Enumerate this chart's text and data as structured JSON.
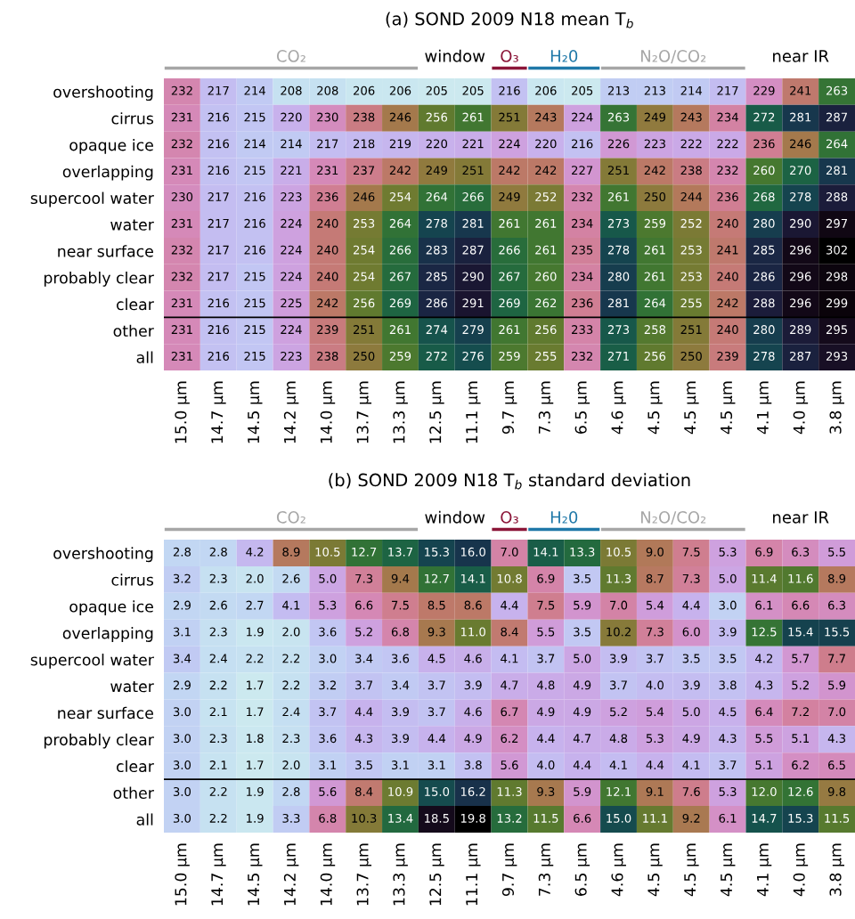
{
  "chart_data": [
    {
      "type": "heatmap",
      "title": "(a) SOND 2009 N18 mean T$_{b}$",
      "data_labels": true,
      "categories": [
        "15.0 µm",
        "14.7 µm",
        "14.5 µm",
        "14.2 µm",
        "14.0 µm",
        "13.7 µm",
        "13.3 µm",
        "12.5 µm",
        "11.1 µm",
        "9.7 µm",
        "7.3 µm",
        "6.5 µm",
        "4.6 µm",
        "4.5 µm",
        "4.5 µm",
        "4.5 µm",
        "4.1 µm",
        "4.0 µm",
        "3.8 µm"
      ],
      "y_categories": [
        "overshooting",
        "cirrus",
        "opaque ice",
        "overlapping",
        "supercool water",
        "water",
        "near surface",
        "probably clear",
        "clear",
        "other",
        "all"
      ],
      "cells": [
        [
          232,
          217,
          214,
          208,
          208,
          206,
          206,
          205,
          205,
          216,
          206,
          205,
          213,
          213,
          214,
          217,
          229,
          241,
          263
        ],
        [
          231,
          216,
          215,
          220,
          230,
          238,
          246,
          256,
          261,
          251,
          243,
          224,
          263,
          249,
          243,
          234,
          272,
          281,
          287
        ],
        [
          232,
          216,
          214,
          214,
          217,
          218,
          219,
          220,
          221,
          224,
          220,
          216,
          226,
          223,
          222,
          222,
          236,
          246,
          264
        ],
        [
          231,
          216,
          215,
          221,
          231,
          237,
          242,
          249,
          251,
          242,
          242,
          227,
          251,
          242,
          238,
          232,
          260,
          270,
          281
        ],
        [
          230,
          217,
          216,
          223,
          236,
          246,
          254,
          264,
          266,
          249,
          252,
          232,
          261,
          250,
          244,
          236,
          268,
          278,
          288
        ],
        [
          231,
          217,
          216,
          224,
          240,
          253,
          264,
          278,
          281,
          261,
          261,
          234,
          273,
          259,
          252,
          240,
          280,
          290,
          297
        ],
        [
          232,
          217,
          216,
          224,
          240,
          254,
          266,
          283,
          287,
          266,
          261,
          235,
          278,
          261,
          253,
          241,
          285,
          296,
          302
        ],
        [
          232,
          217,
          215,
          224,
          240,
          254,
          267,
          285,
          290,
          267,
          260,
          234,
          280,
          261,
          253,
          240,
          286,
          296,
          298
        ],
        [
          231,
          216,
          215,
          225,
          242,
          256,
          269,
          286,
          291,
          269,
          262,
          236,
          281,
          264,
          255,
          242,
          288,
          296,
          299
        ],
        [
          231,
          216,
          215,
          224,
          239,
          251,
          261,
          274,
          279,
          261,
          256,
          233,
          273,
          258,
          251,
          240,
          280,
          289,
          295
        ],
        [
          231,
          216,
          215,
          223,
          238,
          250,
          259,
          272,
          276,
          259,
          255,
          232,
          271,
          256,
          250,
          239,
          278,
          287,
          293
        ]
      ],
      "annotations": [
        "CO₂",
        "window",
        "O₃",
        "H₂0",
        "N₂O/CO₂",
        "near IR"
      ]
    },
    {
      "type": "heatmap",
      "title": "(b) SOND 2009 N18 T$_{b}$ standard deviation",
      "categories": [
        "15.0 µm",
        "14.7 µm",
        "14.5 µm",
        "14.2 µm",
        "14.0 µm",
        "13.7 µm",
        "13.3 µm",
        "12.5 µm",
        "11.1 µm",
        "9.7 µm",
        "7.3 µm",
        "6.5 µm",
        "4.6 µm",
        "4.5 µm",
        "4.5 µm",
        "4.5 µm",
        "4.1 µm",
        "4.0 µm",
        "3.8 µm"
      ],
      "y_categories": [
        "overshooting",
        "cirrus",
        "opaque ice",
        "overlapping",
        "supercool water",
        "water",
        "near surface",
        "probably clear",
        "clear",
        "other",
        "all"
      ],
      "cells": [
        [
          2.8,
          2.8,
          4.2,
          8.9,
          10.5,
          12.7,
          13.7,
          15.3,
          16.0,
          7.0,
          14.1,
          13.3,
          10.5,
          9.0,
          7.5,
          5.3,
          6.9,
          6.3,
          5.5
        ],
        [
          3.2,
          2.3,
          2.0,
          2.6,
          5.0,
          7.3,
          9.4,
          12.7,
          14.1,
          10.8,
          6.9,
          3.5,
          11.3,
          8.7,
          7.3,
          5.0,
          11.4,
          11.6,
          8.9
        ],
        [
          2.9,
          2.6,
          2.7,
          4.1,
          5.3,
          6.6,
          7.5,
          8.5,
          8.6,
          4.4,
          7.5,
          5.9,
          7.0,
          5.4,
          4.4,
          3.0,
          6.1,
          6.6,
          6.3
        ],
        [
          3.1,
          2.3,
          1.9,
          2.0,
          3.6,
          5.2,
          6.8,
          9.3,
          11.0,
          8.4,
          5.5,
          3.5,
          10.2,
          7.3,
          6.0,
          3.9,
          12.5,
          15.4,
          15.5
        ],
        [
          3.4,
          2.4,
          2.2,
          2.2,
          3.0,
          3.4,
          3.6,
          4.5,
          4.6,
          4.1,
          3.7,
          5.0,
          3.9,
          3.7,
          3.5,
          3.5,
          4.2,
          5.7,
          7.7
        ],
        [
          2.9,
          2.2,
          1.7,
          2.2,
          3.2,
          3.7,
          3.4,
          3.7,
          3.9,
          4.7,
          4.8,
          4.9,
          3.7,
          4.0,
          3.9,
          3.8,
          4.3,
          5.2,
          5.9
        ],
        [
          3.0,
          2.1,
          1.7,
          2.4,
          3.7,
          4.4,
          3.9,
          3.7,
          4.6,
          6.7,
          4.9,
          4.9,
          5.2,
          5.4,
          5.0,
          4.5,
          6.4,
          7.2,
          7.0
        ],
        [
          3.0,
          2.3,
          1.8,
          2.3,
          3.6,
          4.3,
          3.9,
          4.4,
          4.9,
          6.2,
          4.4,
          4.7,
          4.8,
          5.3,
          4.9,
          4.3,
          5.5,
          5.1,
          4.3
        ],
        [
          3.0,
          2.1,
          1.7,
          2.0,
          3.1,
          3.5,
          3.1,
          3.1,
          3.8,
          5.6,
          4.0,
          4.4,
          4.1,
          4.4,
          4.1,
          3.7,
          5.1,
          6.2,
          6.5
        ],
        [
          3.0,
          2.2,
          1.9,
          2.8,
          5.6,
          8.4,
          10.9,
          15.0,
          16.2,
          11.3,
          9.3,
          5.9,
          12.1,
          9.1,
          7.6,
          5.3,
          12.0,
          12.6,
          9.8
        ],
        [
          3.0,
          2.2,
          1.9,
          3.3,
          6.8,
          10.3,
          13.4,
          18.5,
          19.8,
          13.2,
          11.5,
          6.6,
          15.0,
          11.1,
          9.2,
          6.1,
          14.7,
          15.3,
          11.5
        ]
      ],
      "cell_labels": [
        [
          "2.8",
          "2.8",
          "4.2",
          "8.9",
          "10.5",
          "12.7",
          "13.7",
          "15.3",
          "16.0",
          "7.0",
          "14.1",
          "13.3",
          "10.5",
          "9.0",
          "7.5",
          "5.3",
          "6.9",
          "6.3",
          "5.5"
        ],
        [
          "3.2",
          "2.3",
          "2.0",
          "2.6",
          "5.0",
          "7.3",
          "9.4",
          "12.7",
          "14.1",
          "10.8",
          "6.9",
          "3.5",
          "11.3",
          "8.7",
          "7.3",
          "5.0",
          "11.4",
          "11.6",
          "8.9"
        ],
        [
          "2.9",
          "2.6",
          "2.7",
          "4.1",
          "5.3",
          "6.6",
          "7.5",
          "8.5",
          "8.6",
          "4.4",
          "7.5",
          "5.9",
          "7.0",
          "5.4",
          "4.4",
          "3.0",
          "6.1",
          "6.6",
          "6.3"
        ],
        [
          "3.1",
          "2.3",
          "1.9",
          "2.0",
          "3.6",
          "5.2",
          "6.8",
          "9.3",
          "11.0",
          "8.4",
          "5.5",
          "3.5",
          "10.2",
          "7.3",
          "6.0",
          "3.9",
          "12.5",
          "15.4",
          "15.5"
        ],
        [
          "3.4",
          "2.4",
          "2.2",
          "2.2",
          "3.0",
          "3.4",
          "3.6",
          "4.5",
          "4.6",
          "4.1",
          "3.7",
          "5.0",
          "3.9",
          "3.7",
          "3.5",
          "3.5",
          "4.2",
          "5.7",
          "7.7"
        ],
        [
          "2.9",
          "2.2",
          "1.7",
          "2.2",
          "3.2",
          "3.7",
          "3.4",
          "3.7",
          "3.9",
          "4.7",
          "4.8",
          "4.9",
          "3.7",
          "4.0",
          "3.9",
          "3.8",
          "4.3",
          "5.2",
          "5.9"
        ],
        [
          "3.0",
          "2.1",
          "1.7",
          "2.4",
          "3.7",
          "4.4",
          "3.9",
          "3.7",
          "4.6",
          "6.7",
          "4.9",
          "4.9",
          "5.2",
          "5.4",
          "5.0",
          "4.5",
          "6.4",
          "7.2",
          "7.0"
        ],
        [
          "3.0",
          "2.3",
          "1.8",
          "2.3",
          "3.6",
          "4.3",
          "3.9",
          "4.4",
          "4.9",
          "6.2",
          "4.4",
          "4.7",
          "4.8",
          "5.3",
          "4.9",
          "4.3",
          "5.5",
          "5.1",
          "4.3"
        ],
        [
          "3.0",
          "2.1",
          "1.7",
          "2.0",
          "3.1",
          "3.5",
          "3.1",
          "3.1",
          "3.8",
          "5.6",
          "4.0",
          "4.4",
          "4.1",
          "4.4",
          "4.1",
          "3.7",
          "5.1",
          "6.2",
          "6.5"
        ],
        [
          "3.0",
          "2.2",
          "1.9",
          "2.8",
          "5.6",
          "8.4",
          "10.9",
          "15.0",
          "16.2",
          "11.3",
          "9.3",
          "5.9",
          "12.1",
          "9.1",
          "7.6",
          "5.3",
          "12.0",
          "12.6",
          "9.8"
        ],
        [
          "3.0",
          "2.2",
          "1.9",
          "3.3",
          "6.8",
          "10.3",
          "13.4",
          "18.5",
          "19.8",
          "13.2",
          "11.5",
          "6.6",
          "15.0",
          "11.1",
          "9.2",
          "6.1",
          "14.7",
          "15.3",
          "11.5"
        ]
      ],
      "annotations": [
        "CO₂",
        "window",
        "O₃",
        "H₂0",
        "N₂O/CO₂",
        "near IR"
      ]
    }
  ]
}
